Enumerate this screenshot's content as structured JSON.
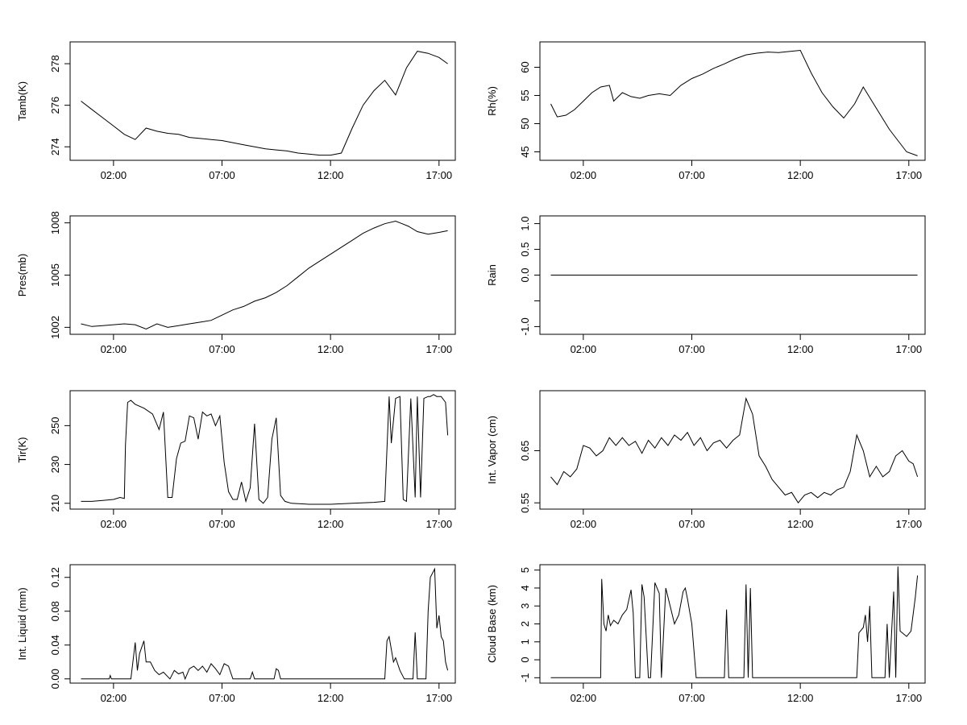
{
  "chart_data": [
    {
      "type": "line",
      "ylabel": "Tamb(K)",
      "xlim": [
        0,
        17.75
      ],
      "ylim": [
        273.35,
        279.05
      ],
      "yticks": [
        274,
        276,
        278
      ],
      "xticks": [
        "02:00",
        "07:00",
        "12:00",
        "17:00"
      ],
      "x": [
        0.5,
        1,
        1.5,
        2,
        2.5,
        3,
        3.5,
        4,
        4.5,
        5,
        5.5,
        6,
        6.5,
        7,
        7.5,
        8,
        8.5,
        9,
        9.5,
        10,
        10.5,
        11,
        11.5,
        12,
        12.5,
        13,
        13.5,
        14,
        14.5,
        15,
        15.5,
        16,
        16.5,
        17,
        17.4
      ],
      "y": [
        276.2,
        275.8,
        275.4,
        275.0,
        274.6,
        274.35,
        274.9,
        274.75,
        274.65,
        274.6,
        274.45,
        274.4,
        274.35,
        274.3,
        274.2,
        274.1,
        274.0,
        273.9,
        273.85,
        273.8,
        273.7,
        273.65,
        273.6,
        273.6,
        273.7,
        274.9,
        276.0,
        276.7,
        277.2,
        276.5,
        277.8,
        278.6,
        278.5,
        278.3,
        278.0
      ]
    },
    {
      "type": "line",
      "ylabel": "Rh(%)",
      "xlim": [
        0,
        17.75
      ],
      "ylim": [
        43.5,
        64.5
      ],
      "yticks": [
        45,
        50,
        55,
        60
      ],
      "xticks": [
        "02:00",
        "07:00",
        "12:00",
        "17:00"
      ],
      "x": [
        0.5,
        0.8,
        1.2,
        1.6,
        2,
        2.4,
        2.8,
        3.2,
        3.4,
        3.8,
        4.2,
        4.6,
        5,
        5.5,
        6,
        6.5,
        7,
        7.5,
        8,
        8.5,
        9,
        9.5,
        10,
        10.5,
        11,
        11.5,
        12,
        12.5,
        13,
        13.5,
        14,
        14.5,
        14.9,
        15.3,
        15.7,
        16.1,
        16.5,
        16.9,
        17.4
      ],
      "y": [
        53.5,
        51.2,
        51.5,
        52.5,
        54.0,
        55.5,
        56.5,
        56.8,
        54.0,
        55.5,
        54.8,
        54.5,
        55.0,
        55.3,
        55.0,
        56.8,
        58.0,
        58.8,
        59.8,
        60.6,
        61.5,
        62.2,
        62.5,
        62.7,
        62.6,
        62.8,
        63.0,
        59.0,
        55.5,
        53.0,
        51.0,
        53.5,
        56.5,
        54.0,
        51.5,
        49.0,
        47.0,
        45.0,
        44.3
      ]
    },
    {
      "type": "line",
      "ylabel": "Pres(mb)",
      "xlim": [
        0,
        17.75
      ],
      "ylim": [
        1001.6,
        1008.4
      ],
      "yticks": [
        1002,
        1005,
        1008
      ],
      "xticks": [
        "02:00",
        "07:00",
        "12:00",
        "17:00"
      ],
      "x": [
        0.5,
        1,
        1.5,
        2,
        2.5,
        3,
        3.5,
        4,
        4.5,
        5,
        5.5,
        6,
        6.5,
        7,
        7.5,
        8,
        8.5,
        9,
        9.5,
        10,
        10.5,
        11,
        11.5,
        12,
        12.5,
        13,
        13.5,
        14,
        14.5,
        15,
        15.3,
        15.6,
        16,
        16.5,
        17,
        17.4
      ],
      "y": [
        1002.2,
        1002.05,
        1002.1,
        1002.15,
        1002.2,
        1002.15,
        1001.9,
        1002.2,
        1002.0,
        1002.1,
        1002.2,
        1002.3,
        1002.4,
        1002.7,
        1003.0,
        1003.2,
        1003.5,
        1003.7,
        1004.0,
        1004.4,
        1004.9,
        1005.4,
        1005.8,
        1006.2,
        1006.6,
        1007.0,
        1007.4,
        1007.7,
        1007.95,
        1008.1,
        1007.95,
        1007.8,
        1007.5,
        1007.35,
        1007.45,
        1007.55
      ]
    },
    {
      "type": "line",
      "ylabel": "Rain",
      "xlim": [
        0,
        17.75
      ],
      "ylim": [
        -1.15,
        1.15
      ],
      "yticks": [
        -1.0,
        -0.5,
        0.0,
        0.5,
        1.0
      ],
      "ytick_labels": [
        "-1.0",
        "",
        "0.0",
        "0.5",
        "1.0"
      ],
      "xticks": [
        "02:00",
        "07:00",
        "12:00",
        "17:00"
      ],
      "x": [
        0.5,
        17.4
      ],
      "y": [
        0,
        0
      ]
    },
    {
      "type": "line",
      "ylabel": "Tir(K)",
      "xlim": [
        0,
        17.75
      ],
      "ylim": [
        207,
        268
      ],
      "yticks": [
        210,
        230,
        250
      ],
      "xticks": [
        "02:00",
        "07:00",
        "12:00",
        "17:00"
      ],
      "x": [
        0.5,
        1,
        1.5,
        2,
        2.3,
        2.5,
        2.55,
        2.65,
        2.8,
        3.0,
        3.4,
        3.8,
        4.1,
        4.3,
        4.5,
        4.7,
        4.9,
        5.1,
        5.3,
        5.5,
        5.7,
        5.9,
        6.1,
        6.3,
        6.5,
        6.7,
        6.9,
        7.1,
        7.3,
        7.5,
        7.7,
        7.9,
        8.1,
        8.3,
        8.5,
        8.7,
        8.9,
        9.1,
        9.3,
        9.5,
        9.7,
        9.9,
        10.2,
        11,
        12,
        13,
        14,
        14.5,
        14.7,
        14.8,
        15.0,
        15.2,
        15.35,
        15.5,
        15.7,
        15.9,
        16.0,
        16.15,
        16.3,
        16.5,
        16.6,
        16.75,
        16.9,
        17.1,
        17.3,
        17.4
      ],
      "y": [
        211,
        211,
        211.5,
        212,
        213,
        212.5,
        240,
        262,
        263,
        261,
        259,
        256,
        248,
        257,
        213,
        213,
        233,
        241,
        242,
        255,
        254,
        243,
        257,
        255,
        256,
        250,
        255,
        231,
        216,
        212,
        212,
        221,
        211,
        218,
        251,
        212,
        210,
        213,
        243,
        254,
        214,
        211,
        210,
        209.5,
        209.5,
        210,
        210.5,
        211,
        265,
        241,
        264,
        265,
        212,
        211,
        264,
        213,
        265,
        213,
        264,
        265,
        265,
        266,
        265,
        265,
        262,
        245
      ]
    },
    {
      "type": "line",
      "ylabel": "Int. Vapor (cm)",
      "xlim": [
        0,
        17.75
      ],
      "ylim": [
        0.538,
        0.765
      ],
      "yticks": [
        0.55,
        0.65
      ],
      "xticks": [
        "02:00",
        "07:00",
        "12:00",
        "17:00"
      ],
      "x": [
        0.5,
        0.8,
        1.1,
        1.4,
        1.7,
        2.0,
        2.3,
        2.6,
        2.9,
        3.2,
        3.5,
        3.8,
        4.1,
        4.4,
        4.7,
        5.0,
        5.3,
        5.6,
        5.9,
        6.2,
        6.5,
        6.8,
        7.1,
        7.4,
        7.7,
        8.0,
        8.3,
        8.6,
        8.9,
        9.2,
        9.5,
        9.8,
        10.1,
        10.4,
        10.7,
        11.0,
        11.3,
        11.6,
        11.9,
        12.2,
        12.5,
        12.8,
        13.1,
        13.4,
        13.7,
        14.0,
        14.3,
        14.6,
        14.9,
        15.2,
        15.5,
        15.8,
        16.1,
        16.4,
        16.7,
        17.0,
        17.2,
        17.4
      ],
      "y": [
        0.6,
        0.585,
        0.61,
        0.6,
        0.615,
        0.66,
        0.655,
        0.64,
        0.65,
        0.675,
        0.66,
        0.675,
        0.66,
        0.668,
        0.645,
        0.67,
        0.655,
        0.675,
        0.66,
        0.68,
        0.67,
        0.685,
        0.66,
        0.675,
        0.65,
        0.665,
        0.67,
        0.655,
        0.67,
        0.68,
        0.75,
        0.72,
        0.64,
        0.62,
        0.595,
        0.58,
        0.565,
        0.57,
        0.55,
        0.565,
        0.57,
        0.56,
        0.57,
        0.565,
        0.575,
        0.58,
        0.61,
        0.68,
        0.65,
        0.6,
        0.62,
        0.6,
        0.61,
        0.64,
        0.65,
        0.63,
        0.625,
        0.6
      ]
    },
    {
      "type": "line",
      "ylabel": "Int. Liquid (mm)",
      "xlim": [
        0,
        17.75
      ],
      "ylim": [
        -0.005,
        0.135
      ],
      "yticks": [
        0.0,
        0.04,
        0.08,
        0.12
      ],
      "ytick_labels": [
        "0.00",
        "0.04",
        "0.08",
        "0.12"
      ],
      "xticks": [
        "02:00",
        "07:00",
        "12:00",
        "17:00"
      ],
      "x": [
        0.5,
        1.5,
        1.8,
        1.85,
        1.9,
        2.8,
        3.0,
        3.1,
        3.2,
        3.4,
        3.5,
        3.7,
        3.9,
        4.1,
        4.3,
        4.6,
        4.8,
        5.0,
        5.2,
        5.3,
        5.5,
        5.7,
        5.9,
        6.1,
        6.3,
        6.5,
        6.7,
        6.9,
        7.1,
        7.3,
        7.5,
        8.3,
        8.4,
        8.5,
        9.4,
        9.5,
        9.6,
        9.7,
        14.5,
        14.6,
        14.7,
        14.9,
        15.0,
        15.2,
        15.4,
        15.5,
        15.8,
        15.9,
        16.0,
        16.2,
        16.4,
        16.5,
        16.6,
        16.8,
        16.9,
        17.0,
        17.1,
        17.2,
        17.3,
        17.4
      ],
      "y": [
        0,
        0,
        0,
        0.004,
        0,
        0,
        0.043,
        0.01,
        0.03,
        0.045,
        0.02,
        0.02,
        0.01,
        0.005,
        0.008,
        0,
        0.01,
        0.006,
        0.008,
        0,
        0.012,
        0.015,
        0.01,
        0.015,
        0.008,
        0.018,
        0.012,
        0.005,
        0.018,
        0.015,
        0,
        0,
        0.008,
        0,
        0,
        0.012,
        0.01,
        0,
        0,
        0.045,
        0.05,
        0.02,
        0.025,
        0.01,
        0,
        0,
        0,
        0.055,
        0,
        0,
        0,
        0.08,
        0.12,
        0.13,
        0.06,
        0.075,
        0.05,
        0.045,
        0.02,
        0.01
      ]
    },
    {
      "type": "line",
      "ylabel": "Cloud Base (km)",
      "xlim": [
        0,
        17.75
      ],
      "ylim": [
        -1.3,
        5.3
      ],
      "yticks": [
        -1,
        0,
        1,
        2,
        3,
        4,
        5
      ],
      "xticks": [
        "02:00",
        "07:00",
        "12:00",
        "17:00"
      ],
      "x": [
        0.5,
        2.8,
        2.85,
        2.95,
        3.05,
        3.15,
        3.25,
        3.4,
        3.6,
        3.8,
        4.0,
        4.2,
        4.3,
        4.4,
        4.6,
        4.7,
        4.8,
        5.0,
        5.1,
        5.3,
        5.5,
        5.6,
        5.8,
        6.0,
        6.2,
        6.4,
        6.6,
        6.7,
        6.8,
        7.0,
        7.2,
        7.4,
        7.5,
        7.6,
        8.5,
        8.6,
        8.7,
        9.4,
        9.5,
        9.6,
        9.7,
        9.8,
        14.6,
        14.7,
        14.9,
        15.0,
        15.1,
        15.2,
        15.3,
        15.5,
        15.6,
        15.9,
        16.0,
        16.1,
        16.3,
        16.4,
        16.5,
        16.6,
        16.7,
        16.9,
        17.1,
        17.3,
        17.4
      ],
      "y": [
        -1,
        -1,
        4.5,
        2.0,
        1.6,
        2.5,
        1.9,
        2.2,
        2.0,
        2.5,
        2.8,
        3.9,
        2.6,
        -1,
        -1,
        4.2,
        3.5,
        -1,
        -1,
        4.3,
        3.7,
        -1,
        4.0,
        3.0,
        2.0,
        2.5,
        3.8,
        4.0,
        3.4,
        2.0,
        -1,
        -1,
        -1,
        -1,
        -1,
        2.8,
        -1,
        -1,
        4.2,
        -1,
        4.0,
        -1,
        -1,
        1.5,
        1.8,
        2.5,
        1.0,
        3.0,
        -1,
        -1,
        -1,
        -1,
        2.0,
        -1,
        3.8,
        -1,
        5.2,
        1.6,
        1.5,
        1.3,
        1.6,
        3.5,
        4.7
      ]
    }
  ]
}
